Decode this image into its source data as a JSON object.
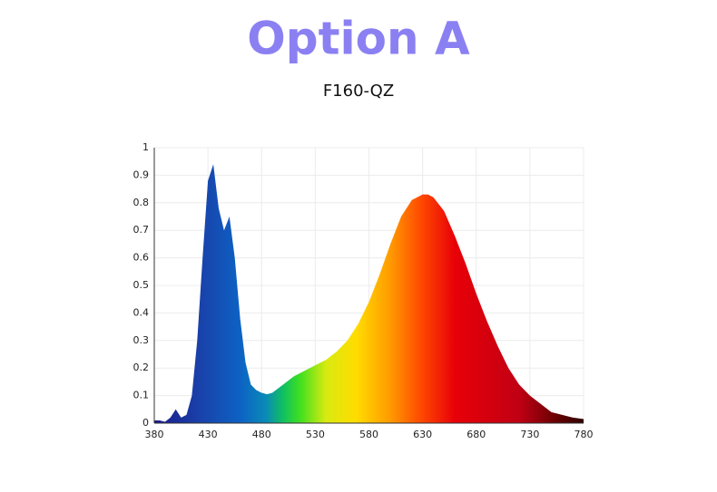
{
  "chart_data": {
    "type": "area",
    "title": "Option A",
    "subtitle": "F160-QZ",
    "x": [
      380,
      385,
      390,
      395,
      400,
      405,
      410,
      415,
      420,
      425,
      430,
      435,
      440,
      445,
      450,
      455,
      460,
      465,
      470,
      475,
      480,
      485,
      490,
      500,
      510,
      520,
      530,
      540,
      550,
      560,
      570,
      580,
      590,
      600,
      610,
      620,
      630,
      635,
      640,
      650,
      660,
      670,
      680,
      690,
      700,
      710,
      720,
      730,
      740,
      750,
      760,
      770,
      780
    ],
    "values": [
      0.01,
      0.01,
      0.005,
      0.02,
      0.05,
      0.02,
      0.03,
      0.1,
      0.3,
      0.6,
      0.88,
      0.94,
      0.78,
      0.7,
      0.75,
      0.6,
      0.38,
      0.22,
      0.14,
      0.12,
      0.11,
      0.105,
      0.11,
      0.14,
      0.17,
      0.19,
      0.21,
      0.23,
      0.26,
      0.3,
      0.36,
      0.44,
      0.54,
      0.65,
      0.75,
      0.81,
      0.83,
      0.83,
      0.82,
      0.77,
      0.68,
      0.58,
      0.47,
      0.37,
      0.28,
      0.2,
      0.14,
      0.1,
      0.07,
      0.04,
      0.03,
      0.02,
      0.015
    ],
    "xlim": [
      380,
      780
    ],
    "ylim": [
      0,
      1
    ],
    "xticks": [
      380,
      430,
      480,
      530,
      580,
      630,
      680,
      730,
      780
    ],
    "yticks": [
      0,
      0.1,
      0.2,
      0.3,
      0.4,
      0.5,
      0.6,
      0.7,
      0.8,
      0.9,
      1
    ],
    "grid": true
  }
}
